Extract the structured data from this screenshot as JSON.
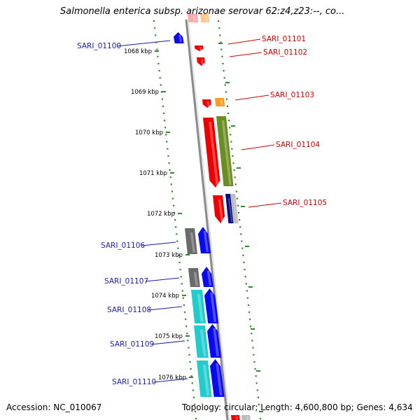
{
  "header": {
    "title": "Salmonella enterica subsp. arizonae serovar 62:z4,z23:--, co..."
  },
  "footer": {
    "accession": "Accession: NC_010067",
    "summary": "Topology: circular; Length: 4,600,800 bp; Genes: 4,634"
  },
  "colors": {
    "reverse_label": "#1a1ab4",
    "forward_label": "#cc0000",
    "backbone": "#8c8c8c",
    "tick": "#2e8b2e",
    "blue_gene": "#0a0aee",
    "red_gene": "#ee0000",
    "orange_gene": "#ff9a22",
    "olive_gene": "#6b8e23",
    "navy_gene": "#0a0a80",
    "gray_gene": "#6a6a6a",
    "cyan_gene": "#22cccc",
    "silver_gene": "#bbbbbb"
  },
  "kbp_ticks": [
    "1068 kbp",
    "1069 kbp",
    "1070 kbp",
    "1071 kbp",
    "1072 kbp",
    "1073 kbp",
    "1074 kbp",
    "1075 kbp",
    "1076 kbp"
  ],
  "genes_reverse": [
    "SARI_01100",
    "SARI_01106",
    "SARI_01107",
    "SARI_01108",
    "SARI_01109",
    "SARI_01110"
  ],
  "genes_forward": [
    "SARI_01101",
    "SARI_01102",
    "SARI_01103",
    "SARI_01104",
    "SARI_01105"
  ]
}
